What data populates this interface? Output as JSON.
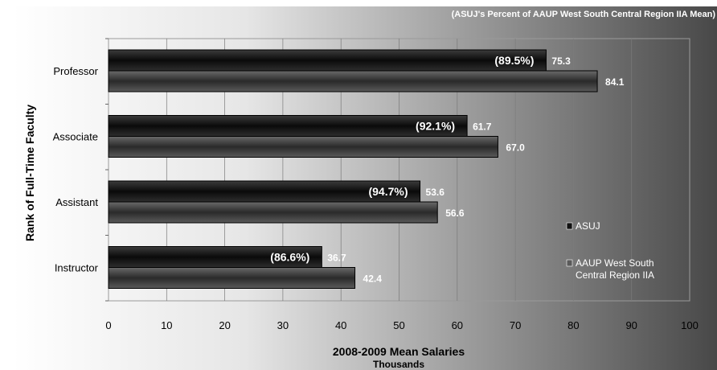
{
  "chart_data": {
    "type": "bar",
    "orientation": "horizontal",
    "annotation": "(ASUJ's Percent of AAUP West South Central Region IIA Mean)",
    "xlabel": "2008-2009 Mean Salaries",
    "xlabel_sub": "Thousands",
    "ylabel": "Rank of Full-Time Faculty",
    "xlim": [
      0,
      100
    ],
    "x_ticks": [
      "0",
      "10",
      "20",
      "30",
      "40",
      "50",
      "60",
      "70",
      "80",
      "90",
      "100"
    ],
    "categories": [
      "Professor",
      "Associate",
      "Assistant",
      "Instructor"
    ],
    "series": [
      {
        "name": "ASUJ",
        "values": [
          75.3,
          61.7,
          53.6,
          36.7
        ],
        "color": "#1e1e1e"
      },
      {
        "name": "AAUP West South Central Region IIA",
        "values": [
          84.1,
          67.0,
          56.6,
          42.4
        ],
        "color": "#4a4a4a"
      }
    ],
    "value_labels": {
      "ASUJ": [
        "75.3",
        "61.7",
        "53.6",
        "36.7"
      ],
      "AAUP West South Central Region IIA": [
        "84.1",
        "67.0",
        "56.6",
        "42.4"
      ]
    },
    "percent_labels": [
      "(89.5%)",
      "(92.1%)",
      "(94.7%)",
      "(86.6%)"
    ],
    "legend_placement": "right",
    "grid": true
  },
  "legend": {
    "asuj": "ASUJ",
    "aaup_line1": "AAUP West South",
    "aaup_line2": "Central Region IIA"
  },
  "colors": {
    "background_light": "#ffffff",
    "background_dark": "#4a4a4a",
    "bar_dark": "#1e1e1e",
    "bar_gray": "#4a4a4a"
  }
}
